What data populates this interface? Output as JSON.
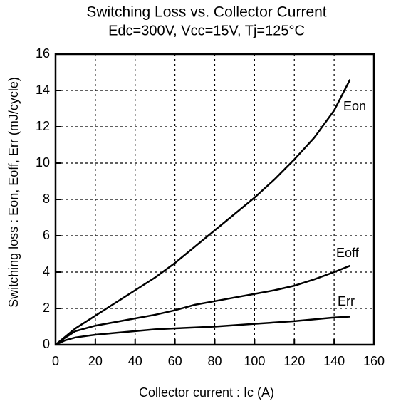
{
  "chart_data": {
    "type": "line",
    "title": "Switching Loss vs. Collector Current",
    "subtitle": "Edc=300V, Vcc=15V, Tj=125°C",
    "xlabel": "Collector current : Ic  (A)",
    "ylabel": "Switching loss : Eon, Eoff, Err  (mJ/cycle)",
    "xlim": [
      0,
      160
    ],
    "xticks": [
      0,
      20,
      40,
      60,
      80,
      100,
      120,
      140,
      160
    ],
    "ylim": [
      0,
      16
    ],
    "yticks": [
      0,
      2,
      4,
      6,
      8,
      10,
      12,
      14,
      16
    ],
    "grid": true,
    "series": [
      {
        "name": "Eon",
        "color": "#000000",
        "x": [
          0,
          10,
          20,
          30,
          40,
          50,
          60,
          70,
          80,
          90,
          100,
          110,
          120,
          130,
          140,
          148
        ],
        "values": [
          0,
          0.9,
          1.6,
          2.3,
          3.0,
          3.7,
          4.5,
          5.4,
          6.3,
          7.2,
          8.1,
          9.1,
          10.2,
          11.4,
          12.9,
          14.6
        ]
      },
      {
        "name": "Eoff",
        "color": "#000000",
        "x": [
          0,
          5,
          10,
          20,
          30,
          40,
          50,
          60,
          70,
          80,
          90,
          100,
          110,
          120,
          130,
          140,
          148
        ],
        "values": [
          0,
          0.4,
          0.75,
          1.05,
          1.25,
          1.45,
          1.65,
          1.9,
          2.2,
          2.4,
          2.6,
          2.8,
          3.0,
          3.25,
          3.6,
          4.0,
          4.35
        ]
      },
      {
        "name": "Err",
        "color": "#000000",
        "x": [
          0,
          5,
          10,
          20,
          30,
          40,
          50,
          60,
          80,
          100,
          120,
          140,
          148
        ],
        "values": [
          0,
          0.25,
          0.4,
          0.55,
          0.65,
          0.75,
          0.85,
          0.9,
          1.0,
          1.15,
          1.3,
          1.5,
          1.55
        ]
      }
    ]
  }
}
